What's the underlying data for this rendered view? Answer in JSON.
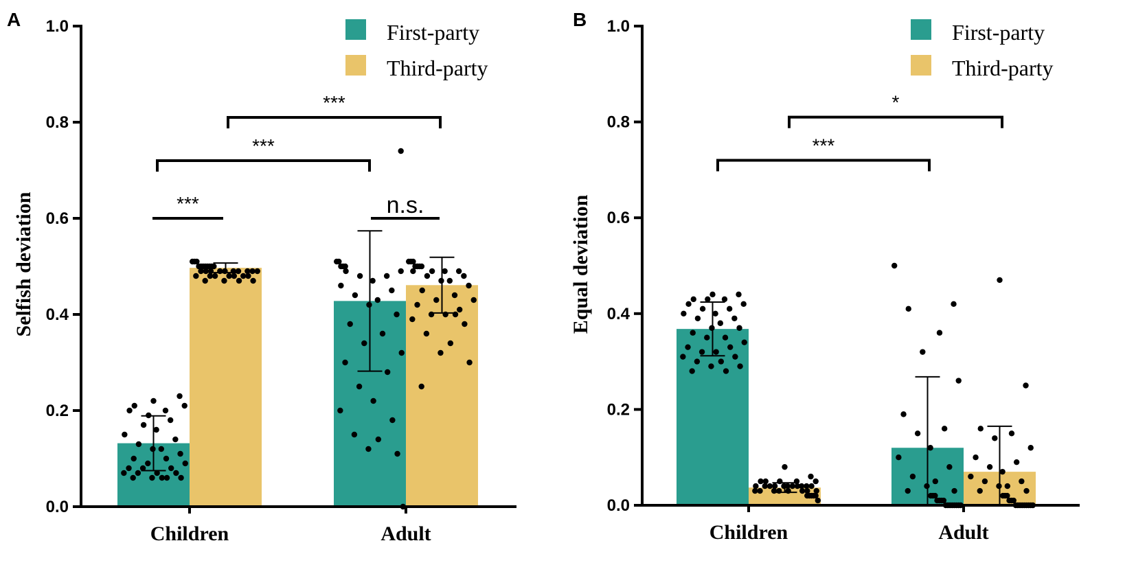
{
  "colors": {
    "first": "#2a9d8f",
    "third": "#e9c46a",
    "axis": "#000000",
    "dot": "#000000"
  },
  "chart_data": [
    {
      "type": "bar",
      "panel": "A",
      "ylabel": "Selfish deviation",
      "ylim": [
        0,
        1.0
      ],
      "yticks": [
        "0.0",
        "0.2",
        "0.4",
        "0.6",
        "0.8",
        "1.0"
      ],
      "yticks_values": [
        0,
        0.2,
        0.4,
        0.6,
        0.8,
        1.0
      ],
      "categories": [
        "Children",
        "Adult"
      ],
      "legend": [
        "First-party",
        "Third-party"
      ],
      "legend_position": "top-right",
      "series": [
        {
          "name": "First-party",
          "values": [
            0.132,
            0.428
          ],
          "sd": [
            0.057,
            0.146
          ],
          "points": [
            [
              0.22,
              0.23,
              0.21,
              0.2,
              0.19,
              0.21,
              0.2,
              0.18,
              0.17,
              0.16,
              0.15,
              0.14,
              0.13,
              0.12,
              0.12,
              0.11,
              0.1,
              0.1,
              0.09,
              0.09,
              0.08,
              0.08,
              0.08,
              0.07,
              0.07,
              0.07,
              0.07,
              0.06,
              0.06,
              0.06,
              0.06,
              0.06
            ],
            [
              0.51,
              0.51,
              0.5,
              0.5,
              0.5,
              0.49,
              0.49,
              0.48,
              0.48,
              0.47,
              0.46,
              0.45,
              0.44,
              0.43,
              0.42,
              0.4,
              0.38,
              0.36,
              0.34,
              0.32,
              0.3,
              0.28,
              0.25,
              0.22,
              0.2,
              0.18,
              0.15,
              0.14,
              0.12,
              0.11,
              0.74,
              0.0
            ]
          ]
        },
        {
          "name": "Third-party",
          "values": [
            0.497,
            0.461
          ],
          "sd": [
            0.01,
            0.058
          ],
          "points": [
            [
              0.51,
              0.51,
              0.51,
              0.5,
              0.5,
              0.5,
              0.5,
              0.5,
              0.5,
              0.5,
              0.5,
              0.49,
              0.49,
              0.49,
              0.49,
              0.49,
              0.49,
              0.49,
              0.49,
              0.49,
              0.49,
              0.48,
              0.48,
              0.48,
              0.48,
              0.48,
              0.48,
              0.48,
              0.47,
              0.47,
              0.47,
              0.47
            ],
            [
              0.51,
              0.51,
              0.51,
              0.5,
              0.5,
              0.5,
              0.5,
              0.49,
              0.49,
              0.49,
              0.49,
              0.48,
              0.48,
              0.47,
              0.47,
              0.46,
              0.45,
              0.44,
              0.43,
              0.43,
              0.42,
              0.41,
              0.4,
              0.4,
              0.39,
              0.38,
              0.36,
              0.34,
              0.32,
              0.3,
              0.25,
              0.4
            ]
          ]
        }
      ],
      "annotations": [
        {
          "text": "***",
          "between": [
            "Children First-party",
            "Children Third-party"
          ],
          "y": 0.6
        },
        {
          "text": "n.s.",
          "between": [
            "Adult First-party",
            "Adult Third-party"
          ],
          "y": 0.6
        },
        {
          "text": "***",
          "between": [
            "Children First-party",
            "Adult First-party"
          ],
          "y": 0.72
        },
        {
          "text": "***",
          "between": [
            "Children Third-party",
            "Adult Third-party"
          ],
          "y": 0.81
        }
      ]
    },
    {
      "type": "bar",
      "panel": "B",
      "ylabel": "Equal deviation",
      "ylim": [
        0,
        1.0
      ],
      "yticks": [
        "0.0",
        "0.2",
        "0.4",
        "0.6",
        "0.8",
        "1.0"
      ],
      "yticks_values": [
        0,
        0.2,
        0.4,
        0.6,
        0.8,
        1.0
      ],
      "categories": [
        "Children",
        "Adult"
      ],
      "legend": [
        "First-party",
        "Third-party"
      ],
      "legend_position": "top-right",
      "series": [
        {
          "name": "First-party",
          "values": [
            0.368,
            0.12
          ],
          "sd": [
            0.056,
            0.148
          ],
          "points": [
            [
              0.44,
              0.44,
              0.43,
              0.43,
              0.43,
              0.42,
              0.42,
              0.41,
              0.41,
              0.4,
              0.4,
              0.39,
              0.39,
              0.38,
              0.37,
              0.37,
              0.36,
              0.35,
              0.35,
              0.34,
              0.33,
              0.33,
              0.32,
              0.32,
              0.31,
              0.31,
              0.3,
              0.3,
              0.29,
              0.29,
              0.28,
              0.28
            ],
            [
              0.5,
              0.42,
              0.41,
              0.36,
              0.32,
              0.26,
              0.19,
              0.16,
              0.15,
              0.12,
              0.1,
              0.08,
              0.06,
              0.05,
              0.04,
              0.03,
              0.03,
              0.02,
              0.02,
              0.02,
              0.01,
              0.01,
              0.01,
              0.01,
              0.0,
              0.0,
              0.0,
              0.0,
              0.0,
              0.0,
              0.0,
              0.0
            ]
          ]
        },
        {
          "name": "Third-party",
          "values": [
            0.037,
            0.07
          ],
          "sd": [
            0.01,
            0.095
          ],
          "points": [
            [
              0.08,
              0.06,
              0.05,
              0.05,
              0.05,
              0.05,
              0.05,
              0.04,
              0.04,
              0.04,
              0.04,
              0.04,
              0.04,
              0.04,
              0.04,
              0.04,
              0.04,
              0.04,
              0.03,
              0.03,
              0.03,
              0.03,
              0.03,
              0.03,
              0.03,
              0.03,
              0.02,
              0.02,
              0.02,
              0.02,
              0.02,
              0.01
            ],
            [
              0.47,
              0.25,
              0.16,
              0.15,
              0.14,
              0.12,
              0.1,
              0.09,
              0.08,
              0.07,
              0.06,
              0.05,
              0.05,
              0.04,
              0.04,
              0.03,
              0.03,
              0.02,
              0.02,
              0.02,
              0.01,
              0.01,
              0.01,
              0.0,
              0.0,
              0.0,
              0.0,
              0.0,
              0.0,
              0.0,
              0.0,
              0.0
            ]
          ]
        }
      ],
      "annotations": [
        {
          "text": "***",
          "between": [
            "Children First-party",
            "Adult First-party"
          ],
          "y": 0.72
        },
        {
          "text": "*",
          "between": [
            "Children Third-party",
            "Adult Third-party"
          ],
          "y": 0.81
        }
      ]
    }
  ]
}
